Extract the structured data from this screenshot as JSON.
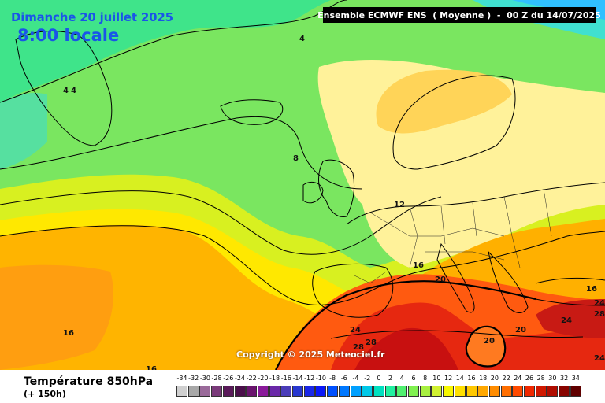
{
  "header": {
    "date": "Dimanche 20 juillet 2025",
    "time": "8:00 locale",
    "run": "Ensemble ECMWF ENS  ( Moyenne )  -  00 Z du 14/07/2025"
  },
  "copyright": "Copyright © 2025 Meteociel.fr",
  "footer": {
    "variable": "Température 850hPa",
    "horizon": "(+ 150h)"
  },
  "contour_labels": [
    "4",
    "4",
    "4",
    "8",
    "12",
    "16",
    "20",
    "16",
    "24",
    "24",
    "28",
    "28",
    "20",
    "20",
    "24",
    "16",
    "24",
    "28",
    "24",
    "16"
  ],
  "legend": {
    "ticks": [
      "-34",
      "-32",
      "-30",
      "-28",
      "-26",
      "-24",
      "-22",
      "-20",
      "-18",
      "-16",
      "-14",
      "-12",
      "-10",
      "-8",
      "-6",
      "-4",
      "-2",
      "0",
      "2",
      "4",
      "6",
      "8",
      "10",
      "12",
      "14",
      "16",
      "18",
      "20",
      "22",
      "24",
      "26",
      "28",
      "30",
      "32",
      "34"
    ],
    "colors": [
      "#d0d0d0",
      "#a8a8a8",
      "#9a6a9a",
      "#7a3a7a",
      "#5a1a5a",
      "#4a0f4a",
      "#6a146e",
      "#8a1a9a",
      "#6a28a8",
      "#4a3cb8",
      "#2838d0",
      "#1a28e8",
      "#0a18f8",
      "#0050ff",
      "#0078ff",
      "#00a0ff",
      "#00c8e8",
      "#00e0c0",
      "#20f0a0",
      "#50f070",
      "#80f050",
      "#a8f040",
      "#d0f030",
      "#f8f800",
      "#ffe000",
      "#ffc800",
      "#ffa800",
      "#ff8c00",
      "#ff6e00",
      "#ff4a00",
      "#f02800",
      "#d01800",
      "#b00c00",
      "#880400",
      "#600000"
    ]
  }
}
